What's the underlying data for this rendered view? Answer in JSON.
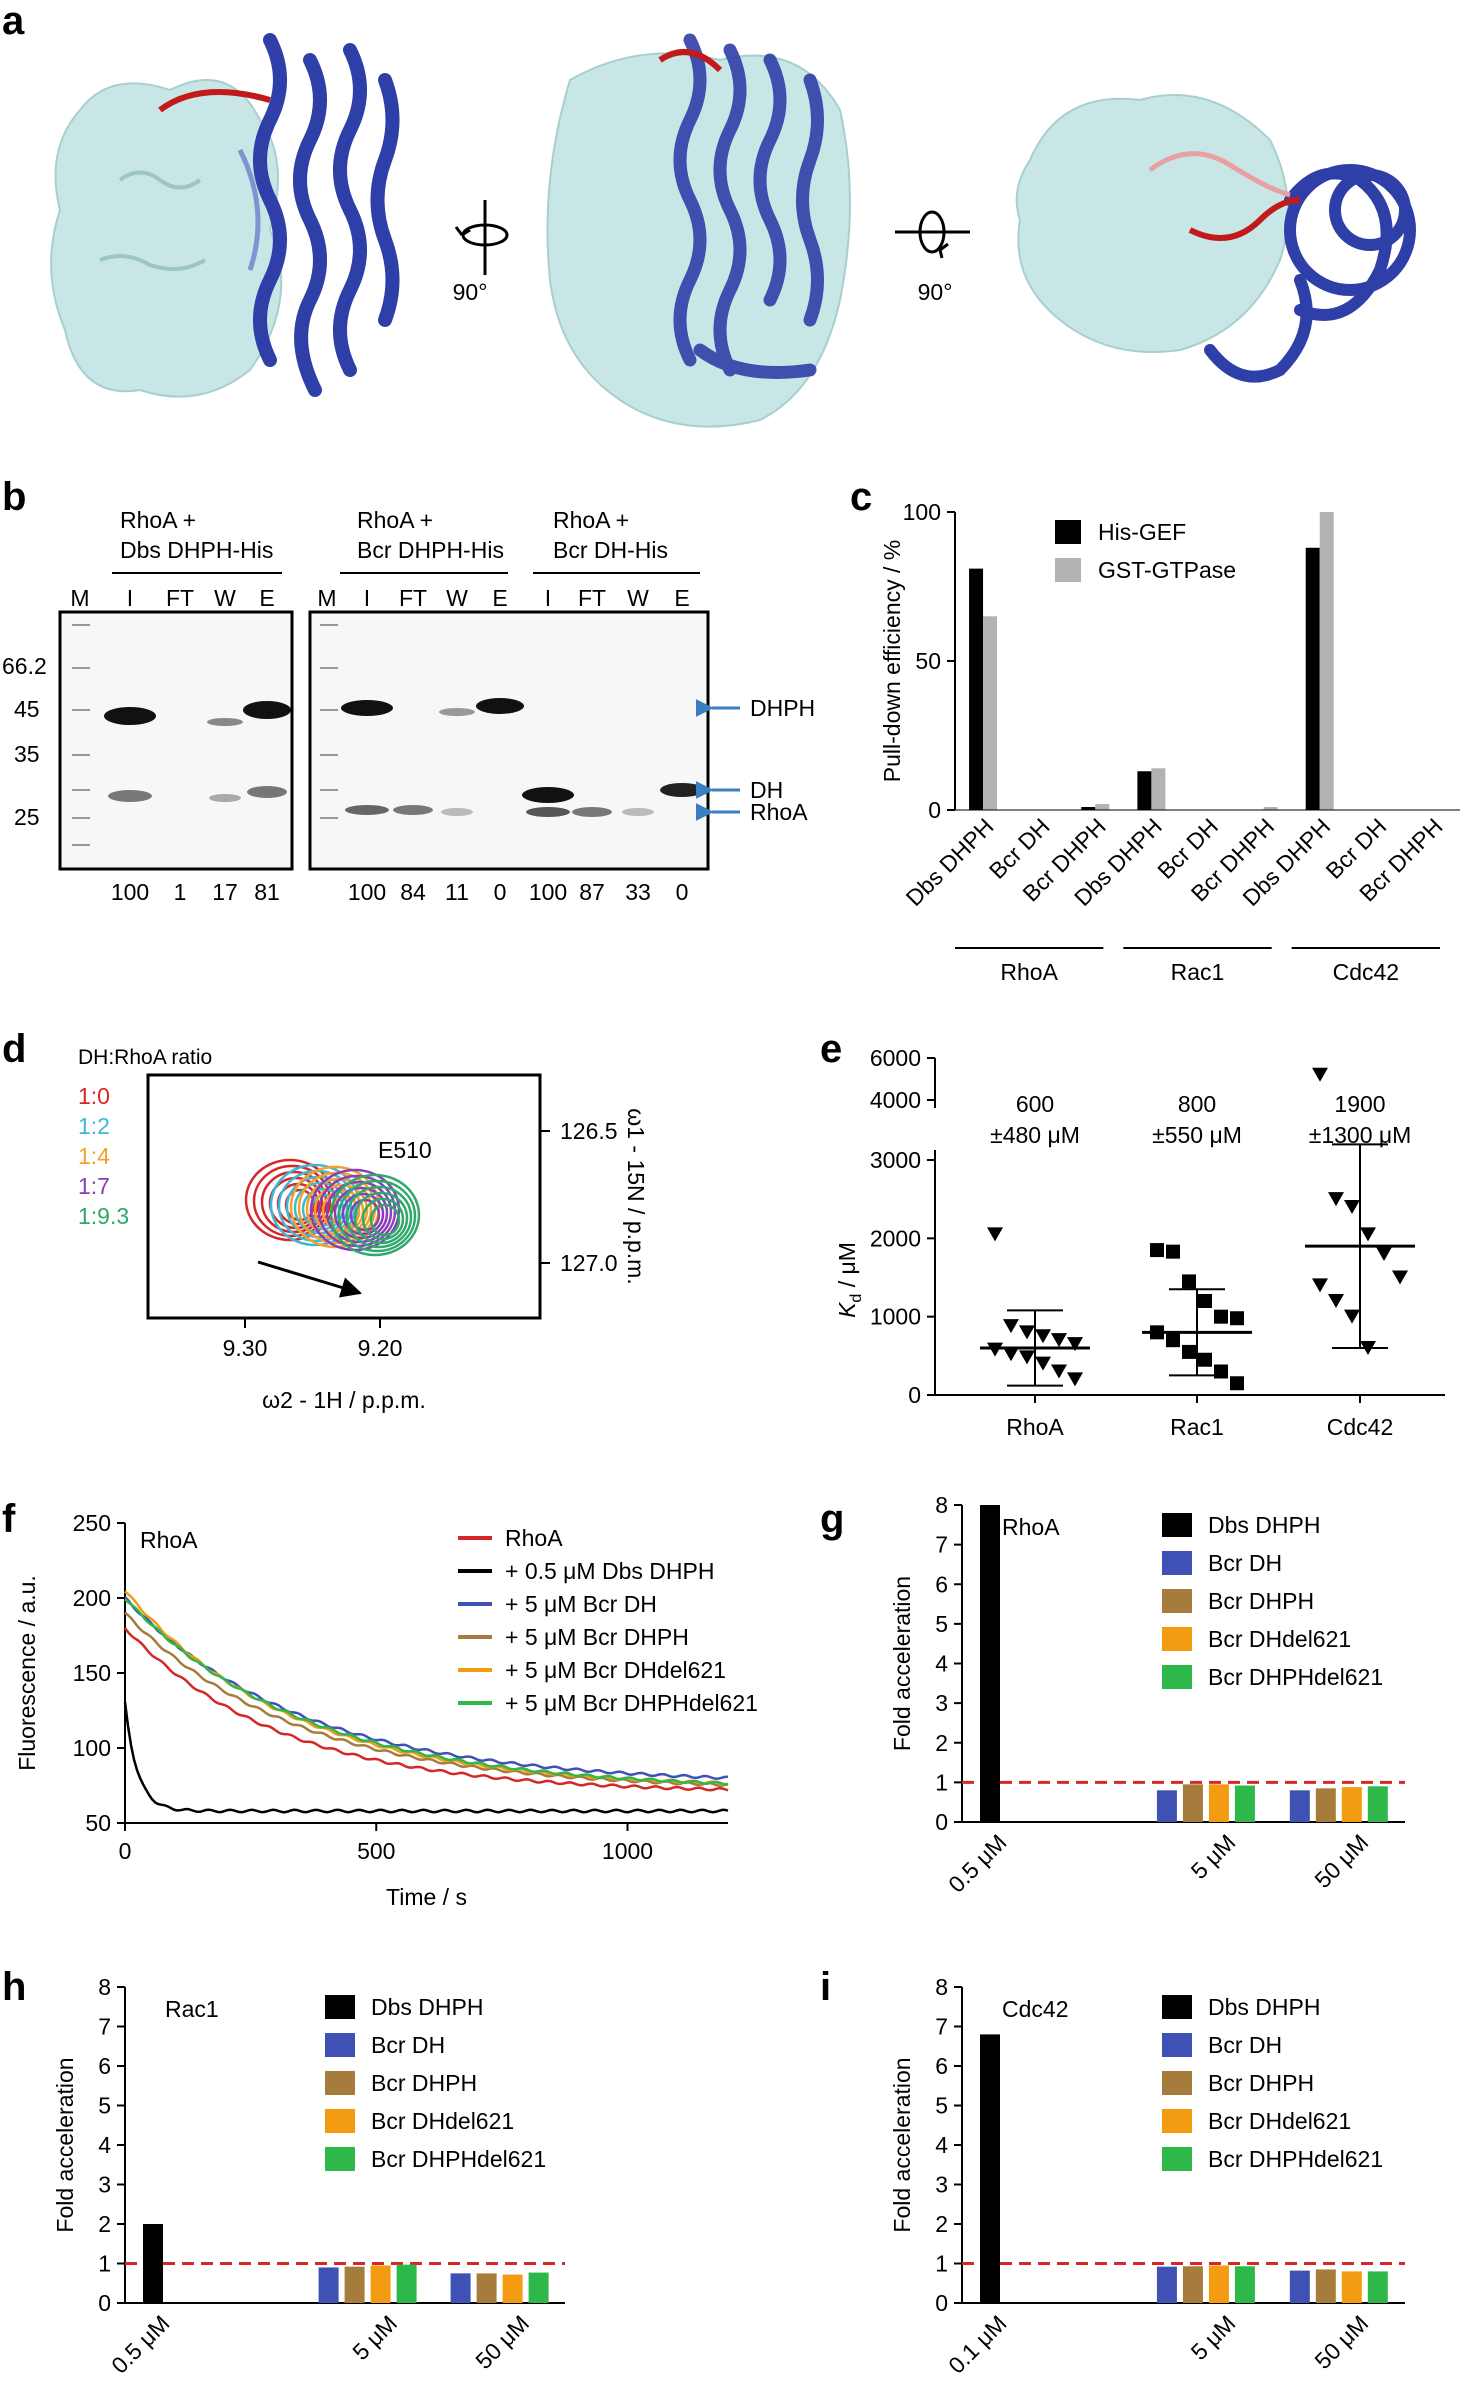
{
  "panel_labels": {
    "a": "a",
    "b": "b",
    "c": "c",
    "d": "d",
    "e": "e",
    "f": "f",
    "g": "g",
    "h": "h",
    "i": "i"
  },
  "panel_a": {
    "rotation1": "90°",
    "rotation2": "90°",
    "colors": {
      "surface": "#c9e6e6",
      "helix": "#2f3fa8",
      "loop": "#c21a1a"
    }
  },
  "panel_b": {
    "groups": [
      {
        "line1": "RhoA +",
        "line2": "Dbs DHPH-His"
      },
      {
        "line1": "RhoA +",
        "line2": "Bcr DHPH-His"
      },
      {
        "line1": "RhoA +",
        "line2": "Bcr DH-His"
      }
    ],
    "lanes_left": [
      "M",
      "I",
      "FT",
      "W",
      "E"
    ],
    "lanes_right": [
      "M",
      "I",
      "FT",
      "W",
      "E",
      "I",
      "FT",
      "W",
      "E"
    ],
    "markers": [
      "66.2",
      "45",
      "35",
      "25"
    ],
    "band_labels": [
      "DHPH",
      "DH",
      "RhoA"
    ],
    "percentages_left": [
      "100",
      "1",
      "17",
      "81"
    ],
    "percentages_right": [
      "100",
      "84",
      "11",
      "0",
      "100",
      "87",
      "33",
      "0"
    ]
  },
  "chart_data": [
    {
      "id": "c",
      "type": "bar",
      "ylabel": "Pull-down efficiency / %",
      "ylim": [
        0,
        100
      ],
      "yticks": [
        "0",
        "50",
        "100"
      ],
      "categories": [
        "Dbs DHPH",
        "Bcr DH",
        "Bcr DHPH",
        "Dbs DHPH",
        "Bcr DH",
        "Bcr DHPH",
        "Dbs DHPH",
        "Bcr DH",
        "Bcr DHPH"
      ],
      "groups": [
        "RhoA",
        "Rac1",
        "Cdc42"
      ],
      "series": [
        {
          "name": "His-GEF",
          "color": "#000000",
          "values": [
            81,
            0,
            1,
            13,
            0,
            0,
            88,
            0,
            0
          ]
        },
        {
          "name": "GST-GTPase",
          "color": "#b3b3b3",
          "values": [
            65,
            0,
            2,
            14,
            0,
            1,
            100,
            0,
            0
          ]
        }
      ]
    },
    {
      "id": "d",
      "type": "contour",
      "title": "DH:RhoA ratio",
      "xlabel": "ω2 - 1H  / p.p.m.",
      "ylabel": "ω1 - 15N / p.p.m.",
      "xticks": [
        "9.30",
        "9.20"
      ],
      "yticks": [
        "126.5",
        "127.0"
      ],
      "peak_label": "E510",
      "ratios": [
        {
          "label": "1:0",
          "color": "#d62728"
        },
        {
          "label": "1:2",
          "color": "#3db8d6"
        },
        {
          "label": "1:4",
          "color": "#f5a02a"
        },
        {
          "label": "1:7",
          "color": "#8a3fb8"
        },
        {
          "label": "1:9.3",
          "color": "#2fa86c"
        }
      ]
    },
    {
      "id": "e",
      "type": "scatter",
      "ylabel": "Kd / μM",
      "ylabel_main": "K",
      "ylabel_sub": "d",
      "ylabel_unit": " / μM",
      "yticks_low": [
        "0",
        "1000",
        "2000",
        "3000"
      ],
      "yticks_high": [
        "4000",
        "6000"
      ],
      "categories": [
        "RhoA",
        "Rac1",
        "Cdc42"
      ],
      "annotations": [
        {
          "value": "600",
          "err": "±480 μM"
        },
        {
          "value": "800",
          "err": "±550 μM"
        },
        {
          "value": "1900",
          "err": "±1300 μM"
        }
      ],
      "means": [
        600,
        800,
        1900
      ],
      "sd": [
        480,
        550,
        1300
      ],
      "points": [
        [
          2050,
          880,
          800,
          750,
          700,
          650,
          580,
          520,
          480,
          400,
          300,
          200
        ],
        [
          1850,
          1830,
          1450,
          1200,
          1000,
          980,
          800,
          700,
          550,
          450,
          300,
          150
        ],
        [
          5200,
          2500,
          2400,
          2050,
          1800,
          1500,
          1400,
          1200,
          1000,
          600
        ]
      ],
      "markers": [
        "triangle-down",
        "square",
        "triangle-down"
      ]
    },
    {
      "id": "f",
      "type": "line",
      "title": "RhoA",
      "xlabel": "Time / s",
      "ylabel": "Fluorescence / a.u.",
      "xlim": [
        0,
        1200
      ],
      "ylim": [
        50,
        250
      ],
      "xticks": [
        "0",
        "500",
        "1000"
      ],
      "yticks": [
        "50",
        "100",
        "150",
        "200",
        "250"
      ],
      "series": [
        {
          "name": "RhoA",
          "color": "#d62728",
          "start": 180,
          "end": 70,
          "tau": 310
        },
        {
          "name": "+ 0.5 μM Dbs DHPH",
          "color": "#000000",
          "start": 130,
          "end": 58,
          "tau": 25
        },
        {
          "name": "+ 5 μM Bcr DH",
          "color": "#3f51b5",
          "start": 200,
          "end": 76,
          "tau": 350
        },
        {
          "name": "+ 5 μM Bcr DHPH",
          "color": "#a67c3d",
          "start": 190,
          "end": 72,
          "tau": 340
        },
        {
          "name": "+ 5 μM Bcr DHdel621",
          "color": "#f39c12",
          "start": 205,
          "end": 73,
          "tau": 330
        },
        {
          "name": "+ 5 μM Bcr DHPHdel621",
          "color": "#2eb84a",
          "start": 200,
          "end": 72,
          "tau": 355
        }
      ]
    },
    {
      "id": "g",
      "type": "bar",
      "title": "RhoA",
      "ylabel": "Fold acceleration",
      "ylim": [
        0,
        8
      ],
      "yticks": [
        "0",
        "1",
        "2",
        "3",
        "4",
        "5",
        "6",
        "7",
        "8"
      ],
      "categories": [
        "0.5 μM",
        "5 μM",
        "50 μM"
      ],
      "series": [
        {
          "name": "Dbs DHPH",
          "color": "#000000",
          "values": [
            8.0,
            null,
            null
          ]
        },
        {
          "name": "Bcr DH",
          "color": "#3f51b5",
          "values": [
            null,
            0.8,
            0.8
          ]
        },
        {
          "name": "Bcr DHPH",
          "color": "#a67c3d",
          "values": [
            null,
            0.95,
            0.85
          ]
        },
        {
          "name": "Bcr DHdel621",
          "color": "#f39c12",
          "values": [
            null,
            0.95,
            0.88
          ]
        },
        {
          "name": "Bcr DHPHdel621",
          "color": "#2eb84a",
          "values": [
            null,
            0.92,
            0.9
          ]
        }
      ]
    },
    {
      "id": "h",
      "type": "bar",
      "title": "Rac1",
      "ylabel": "Fold acceleration",
      "ylim": [
        0,
        8
      ],
      "yticks": [
        "0",
        "1",
        "2",
        "3",
        "4",
        "5",
        "6",
        "7",
        "8"
      ],
      "categories": [
        "0.5 μM",
        "5 μM",
        "50 μM"
      ],
      "series": [
        {
          "name": "Dbs DHPH",
          "color": "#000000",
          "values": [
            2.0,
            null,
            null
          ]
        },
        {
          "name": "Bcr DH",
          "color": "#3f51b5",
          "values": [
            null,
            0.9,
            0.75
          ]
        },
        {
          "name": "Bcr DHPH",
          "color": "#a67c3d",
          "values": [
            null,
            0.92,
            0.75
          ]
        },
        {
          "name": "Bcr DHdel621",
          "color": "#f39c12",
          "values": [
            null,
            0.95,
            0.72
          ]
        },
        {
          "name": "Bcr DHPHdel621",
          "color": "#2eb84a",
          "values": [
            null,
            0.97,
            0.77
          ]
        }
      ]
    },
    {
      "id": "i",
      "type": "bar",
      "title": "Cdc42",
      "ylabel": "Fold acceleration",
      "ylim": [
        0,
        8
      ],
      "yticks": [
        "0",
        "1",
        "2",
        "3",
        "4",
        "5",
        "6",
        "7",
        "8"
      ],
      "categories": [
        "0.1 μM",
        "5 μM",
        "50 μM"
      ],
      "series": [
        {
          "name": "Dbs DHPH",
          "color": "#000000",
          "values": [
            6.8,
            null,
            null
          ]
        },
        {
          "name": "Bcr DH",
          "color": "#3f51b5",
          "values": [
            null,
            0.92,
            0.82
          ]
        },
        {
          "name": "Bcr DHPH",
          "color": "#a67c3d",
          "values": [
            null,
            0.93,
            0.85
          ]
        },
        {
          "name": "Bcr DHdel621",
          "color": "#f39c12",
          "values": [
            null,
            0.95,
            0.8
          ]
        },
        {
          "name": "Bcr DHPHdel621",
          "color": "#2eb84a",
          "values": [
            null,
            0.93,
            0.8
          ]
        }
      ]
    }
  ]
}
